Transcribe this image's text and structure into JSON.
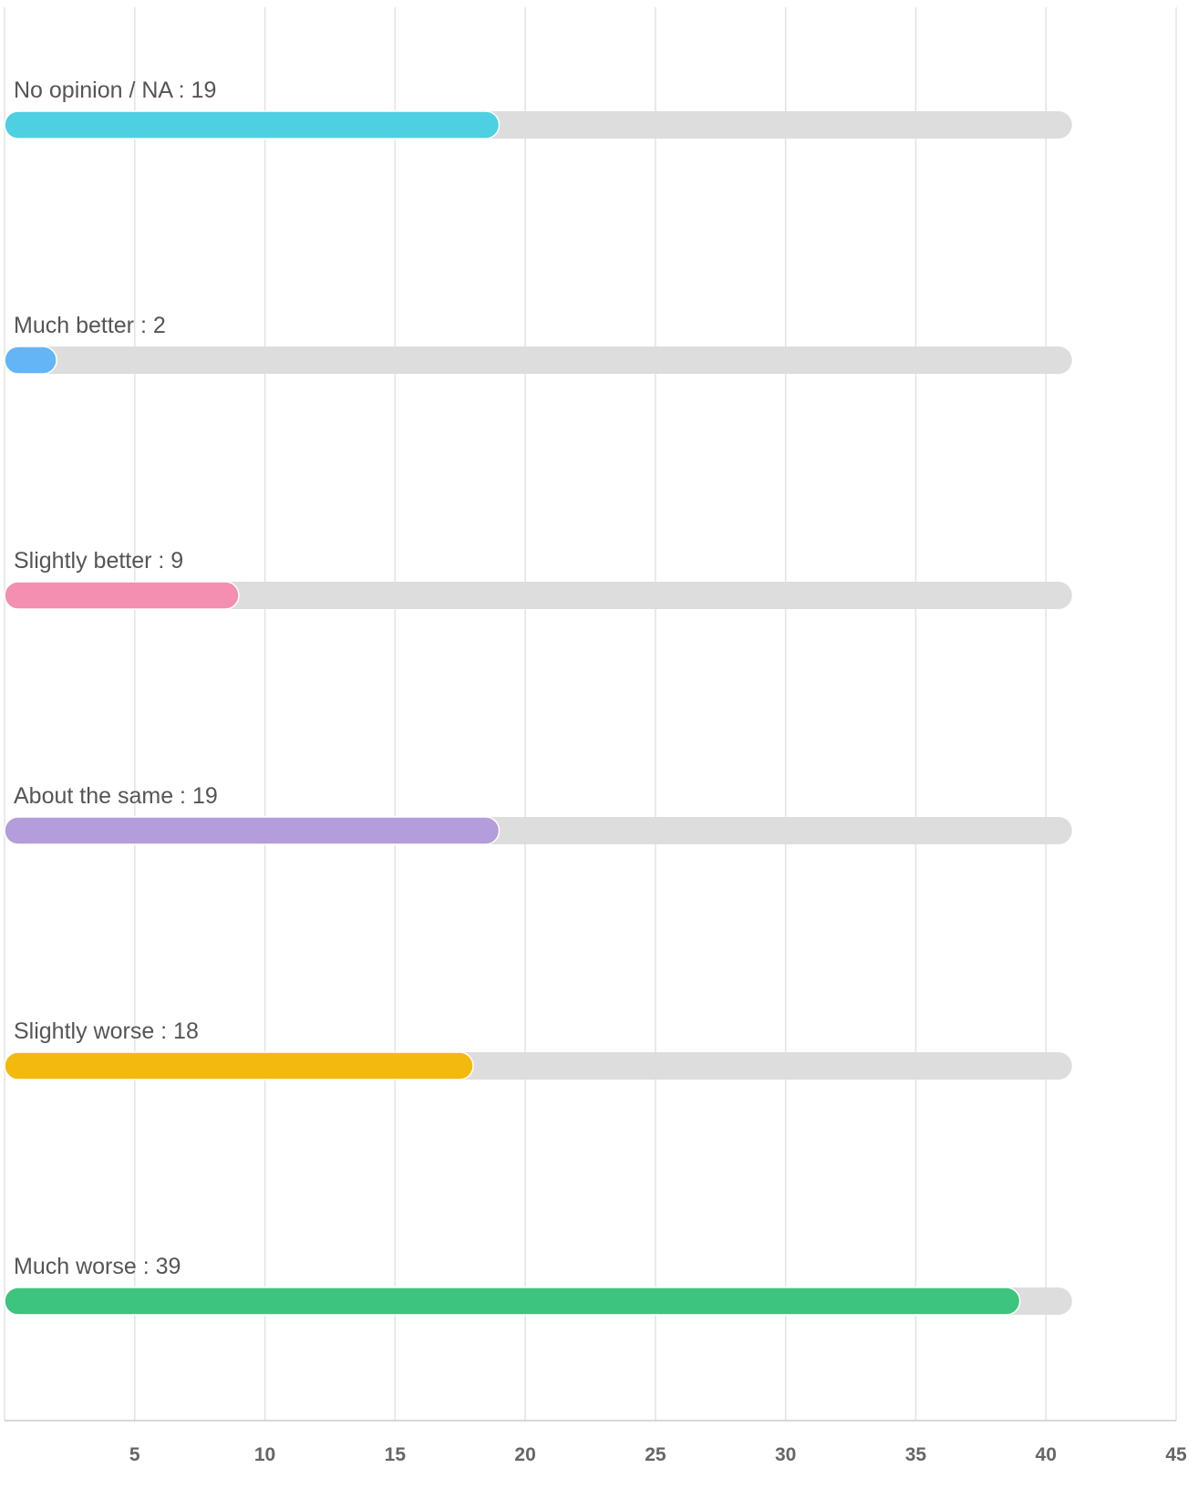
{
  "chart_data": {
    "type": "bar",
    "orientation": "horizontal",
    "categories": [
      "No opinion / NA",
      "Much better",
      "Slightly better",
      "About the same",
      "Slightly worse",
      "Much worse"
    ],
    "values": [
      19,
      2,
      9,
      19,
      18,
      39
    ],
    "labels": [
      "No opinion / NA : 19",
      "Much better : 2",
      "Slightly better : 9",
      "About the same : 19",
      "Slightly worse : 18",
      "Much worse : 39"
    ],
    "colors": [
      "#4dd0e1",
      "#64b5f6",
      "#f48fb1",
      "#b39ddb",
      "#f4b90e",
      "#3dc47e"
    ],
    "track_color": "#dddddd",
    "track_max": 41,
    "xlim": [
      0,
      45
    ],
    "xticks": [
      5,
      10,
      15,
      20,
      25,
      30,
      35,
      40,
      45
    ],
    "xtick_labels": [
      "5",
      "10",
      "15",
      "20",
      "25",
      "30",
      "35",
      "40",
      "45"
    ],
    "grid": true,
    "title": "",
    "xlabel": "",
    "ylabel": ""
  }
}
